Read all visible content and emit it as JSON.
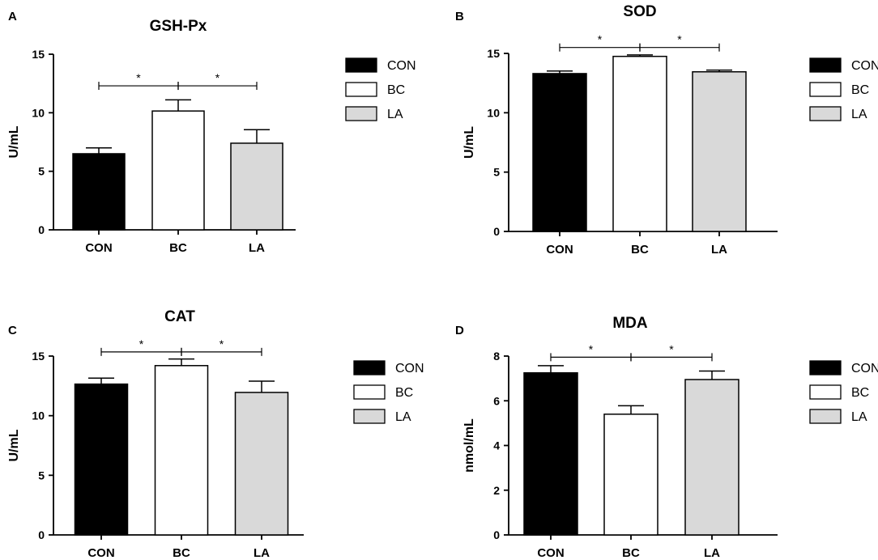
{
  "colors": {
    "CON": "#000000",
    "BC": "#ffffff",
    "LA": "#d9d9d9",
    "stroke": "#000000"
  },
  "chart_data": [
    {
      "panel": "A",
      "type": "bar",
      "title": "GSH-Px",
      "ylabel": "U/mL",
      "categories": [
        "CON",
        "BC",
        "LA"
      ],
      "values": [
        6.5,
        10.15,
        7.4
      ],
      "errors": [
        0.5,
        0.95,
        1.15
      ],
      "ylim": [
        0,
        15
      ],
      "yticks": [
        0,
        5,
        10,
        15
      ],
      "significance": [
        {
          "from": 0,
          "to": 1,
          "label": "*"
        },
        {
          "from": 1,
          "to": 2,
          "label": "*"
        }
      ],
      "sig_level": 12.3,
      "legend": [
        "CON",
        "BC",
        "LA"
      ]
    },
    {
      "panel": "B",
      "type": "bar",
      "title": "SOD",
      "ylabel": "U/mL",
      "categories": [
        "CON",
        "BC",
        "LA"
      ],
      "values": [
        13.3,
        14.75,
        13.45
      ],
      "errors": [
        0.22,
        0.12,
        0.14
      ],
      "ylim": [
        0,
        15
      ],
      "yticks": [
        0,
        5,
        10,
        15
      ],
      "significance": [
        {
          "from": 0,
          "to": 1,
          "label": "*"
        },
        {
          "from": 1,
          "to": 2,
          "label": "*"
        }
      ],
      "sig_level": 15.5,
      "legend": [
        "CON",
        "BC",
        "LA"
      ]
    },
    {
      "panel": "C",
      "type": "bar",
      "title": "CAT",
      "ylabel": "U/mL",
      "categories": [
        "CON",
        "BC",
        "LA"
      ],
      "values": [
        12.65,
        14.2,
        11.95
      ],
      "errors": [
        0.5,
        0.55,
        0.95
      ],
      "ylim": [
        0,
        15
      ],
      "yticks": [
        0,
        5,
        10,
        15
      ],
      "significance": [
        {
          "from": 0,
          "to": 1,
          "label": "*"
        },
        {
          "from": 1,
          "to": 2,
          "label": "*"
        }
      ],
      "sig_level": 15.35,
      "legend": [
        "CON",
        "BC",
        "LA"
      ]
    },
    {
      "panel": "D",
      "type": "bar",
      "title": "MDA",
      "ylabel": "nmol/mL",
      "categories": [
        "CON",
        "BC",
        "LA"
      ],
      "values": [
        7.25,
        5.4,
        6.95
      ],
      "errors": [
        0.32,
        0.38,
        0.38
      ],
      "ylim": [
        0,
        8
      ],
      "yticks": [
        0,
        2,
        4,
        6,
        8
      ],
      "significance": [
        {
          "from": 0,
          "to": 1,
          "label": "*"
        },
        {
          "from": 1,
          "to": 2,
          "label": "*"
        }
      ],
      "sig_level": 7.95,
      "legend": [
        "CON",
        "BC",
        "LA"
      ]
    }
  ]
}
